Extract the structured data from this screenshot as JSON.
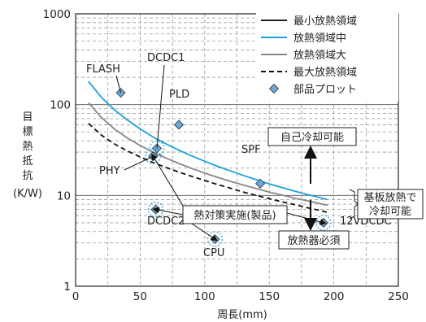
{
  "chart_data": {
    "type": "line",
    "xlabel": "周長(mm)",
    "ylabel": "目標熱抵抗(K/W)",
    "xlim": [
      0,
      250
    ],
    "ylim": [
      1,
      1000
    ],
    "y_scale": "log",
    "grid": true,
    "x_ticks": [
      0,
      50,
      100,
      150,
      200,
      250
    ],
    "y_ticks": [
      1,
      10,
      100,
      1000
    ],
    "x_tick_labels": [
      "0",
      "50",
      "100",
      "150",
      "200",
      "250"
    ],
    "y_tick_labels": [
      "1",
      "10",
      "100",
      "1000"
    ],
    "legend_position": "top-right",
    "series": [
      {
        "name": "最小放熱領域",
        "color": "#222222",
        "style": "solid",
        "x": [],
        "y": []
      },
      {
        "name": "放熱領域中",
        "color": "#1aa3d4",
        "style": "solid",
        "x": [
          10,
          20,
          30,
          40,
          50,
          60,
          70,
          80,
          90,
          100,
          110,
          120,
          130,
          140,
          150,
          160,
          170,
          180,
          190,
          195
        ],
        "y": [
          180,
          120,
          88,
          68,
          54,
          44,
          37,
          31.5,
          27.2,
          23.8,
          20.9,
          18.6,
          16.6,
          14.9,
          13.4,
          12.2,
          11.1,
          10.2,
          9.4,
          9.0
        ]
      },
      {
        "name": "放熱領域大",
        "color": "#888888",
        "style": "solid",
        "x": [
          10,
          20,
          30,
          40,
          50,
          60,
          70,
          80,
          90,
          100,
          110,
          120,
          130,
          140,
          150,
          160,
          170,
          180,
          190,
          195
        ],
        "y": [
          105,
          72,
          54,
          43,
          35.5,
          30,
          25.8,
          22.5,
          19.8,
          17.6,
          15.8,
          14.3,
          13.0,
          11.9,
          10.9,
          10.1,
          9.3,
          8.7,
          8.1,
          7.8
        ]
      },
      {
        "name": "最大放熱領域",
        "color": "#111111",
        "style": "dashed",
        "x": [
          10,
          20,
          30,
          40,
          50,
          60,
          70,
          80,
          90,
          100,
          110,
          120,
          130,
          140,
          150,
          160,
          170,
          180,
          190,
          195
        ],
        "y": [
          62,
          46,
          37,
          31,
          26.5,
          23,
          20.3,
          18.1,
          16.2,
          14.6,
          13.2,
          12.0,
          10.9,
          10.0,
          9.2,
          8.5,
          7.9,
          7.3,
          6.8,
          6.5
        ]
      }
    ],
    "points_series": {
      "name": "部品プロット",
      "color": "#6aa6d6",
      "points": [
        {
          "label": "FLASH",
          "x": 35,
          "y": 135,
          "circled": false
        },
        {
          "label": "DCDC1",
          "x": 63,
          "y": 33,
          "circled": true
        },
        {
          "label": "PLD",
          "x": 80,
          "y": 60,
          "circled": false
        },
        {
          "label": "PHY",
          "x": 60,
          "y": 27,
          "circled": true
        },
        {
          "label": "SPF",
          "x": 143,
          "y": 13.5,
          "circled": false
        },
        {
          "label": "DCDC2",
          "x": 62,
          "y": 7.0,
          "circled": true
        },
        {
          "label": "CPU",
          "x": 108,
          "y": 3.3,
          "circled": true
        },
        {
          "label": "12VDCDC",
          "x": 192,
          "y": 5.0,
          "circled": true
        }
      ]
    },
    "annotations": {
      "self_cooling": "自己冷却可能",
      "board_cooling_line1": "基板放熱で",
      "board_cooling_line2": "冷却可能",
      "heatsink_required": "放熱器必須",
      "countermeasure": "熱対策実施(製品)"
    }
  }
}
